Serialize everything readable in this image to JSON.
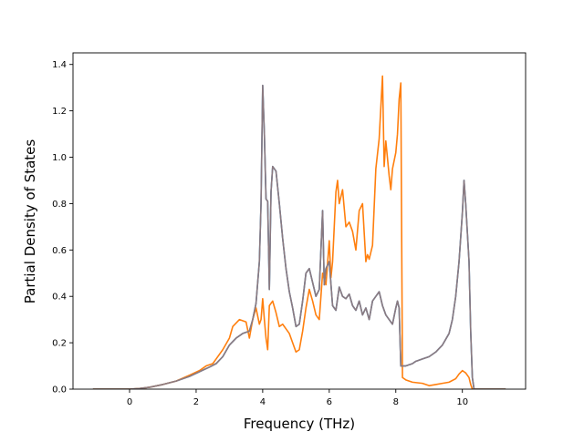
{
  "chart_data": {
    "type": "line",
    "title": "",
    "xlabel": "Frequency (THz)",
    "ylabel": "Partial Density of States",
    "xlim": [
      -1.7,
      11.9
    ],
    "ylim": [
      0.0,
      1.45
    ],
    "xticks": [
      0,
      2,
      4,
      6,
      8,
      10
    ],
    "yticks": [
      0.0,
      0.2,
      0.4,
      0.6,
      0.8,
      1.0,
      1.2,
      1.4
    ],
    "xtick_labels": [
      "0",
      "2",
      "4",
      "6",
      "8",
      "10"
    ],
    "ytick_labels": [
      "0.0",
      "0.2",
      "0.4",
      "0.6",
      "0.8",
      "1.0",
      "1.2",
      "1.4"
    ],
    "grid": false,
    "legend": "none",
    "series": [
      {
        "color": "#1f77b4",
        "points": [
          [
            -1.1,
            0
          ],
          [
            0,
            0
          ],
          [
            0.3,
            0.003
          ],
          [
            0.6,
            0.008
          ],
          [
            1.0,
            0.02
          ],
          [
            1.4,
            0.035
          ],
          [
            1.8,
            0.055
          ],
          [
            2.1,
            0.075
          ],
          [
            2.4,
            0.095
          ],
          [
            2.6,
            0.11
          ],
          [
            2.8,
            0.14
          ],
          [
            3.0,
            0.19
          ],
          [
            3.2,
            0.22
          ],
          [
            3.4,
            0.24
          ],
          [
            3.6,
            0.25
          ],
          [
            3.7,
            0.3
          ],
          [
            3.8,
            0.37
          ],
          [
            3.9,
            0.55
          ],
          [
            3.95,
            0.8
          ],
          [
            4.0,
            1.31
          ],
          [
            4.05,
            1.1
          ],
          [
            4.1,
            0.82
          ],
          [
            4.15,
            0.81
          ],
          [
            4.2,
            0.43
          ],
          [
            4.25,
            0.85
          ],
          [
            4.3,
            0.96
          ],
          [
            4.4,
            0.94
          ],
          [
            4.5,
            0.8
          ],
          [
            4.6,
            0.65
          ],
          [
            4.7,
            0.52
          ],
          [
            4.8,
            0.42
          ],
          [
            4.9,
            0.35
          ],
          [
            5.0,
            0.27
          ],
          [
            5.1,
            0.28
          ],
          [
            5.2,
            0.38
          ],
          [
            5.3,
            0.5
          ],
          [
            5.4,
            0.52
          ],
          [
            5.5,
            0.46
          ],
          [
            5.6,
            0.4
          ],
          [
            5.7,
            0.43
          ],
          [
            5.8,
            0.77
          ],
          [
            5.85,
            0.45
          ],
          [
            5.9,
            0.52
          ],
          [
            6.0,
            0.55
          ],
          [
            6.1,
            0.36
          ],
          [
            6.2,
            0.34
          ],
          [
            6.3,
            0.44
          ],
          [
            6.4,
            0.4
          ],
          [
            6.5,
            0.39
          ],
          [
            6.6,
            0.41
          ],
          [
            6.7,
            0.36
          ],
          [
            6.8,
            0.34
          ],
          [
            6.9,
            0.38
          ],
          [
            7.0,
            0.32
          ],
          [
            7.1,
            0.35
          ],
          [
            7.2,
            0.3
          ],
          [
            7.3,
            0.38
          ],
          [
            7.4,
            0.4
          ],
          [
            7.5,
            0.42
          ],
          [
            7.6,
            0.36
          ],
          [
            7.7,
            0.32
          ],
          [
            7.8,
            0.3
          ],
          [
            7.9,
            0.28
          ],
          [
            8.0,
            0.35
          ],
          [
            8.05,
            0.38
          ],
          [
            8.1,
            0.35
          ],
          [
            8.15,
            0.1
          ],
          [
            8.3,
            0.1
          ],
          [
            8.5,
            0.11
          ],
          [
            8.6,
            0.12
          ],
          [
            8.8,
            0.13
          ],
          [
            9.0,
            0.14
          ],
          [
            9.2,
            0.16
          ],
          [
            9.4,
            0.19
          ],
          [
            9.6,
            0.24
          ],
          [
            9.7,
            0.3
          ],
          [
            9.8,
            0.4
          ],
          [
            9.9,
            0.55
          ],
          [
            10.0,
            0.76
          ],
          [
            10.05,
            0.9
          ],
          [
            10.1,
            0.8
          ],
          [
            10.2,
            0.55
          ],
          [
            10.25,
            0.25
          ],
          [
            10.3,
            0.05
          ],
          [
            10.35,
            0
          ],
          [
            11.3,
            0
          ]
        ]
      },
      {
        "color": "#ff7f0e",
        "points": [
          [
            -1.1,
            0
          ],
          [
            0,
            0
          ],
          [
            0.3,
            0.003
          ],
          [
            0.6,
            0.008
          ],
          [
            1.0,
            0.02
          ],
          [
            1.4,
            0.035
          ],
          [
            1.8,
            0.06
          ],
          [
            2.1,
            0.08
          ],
          [
            2.3,
            0.1
          ],
          [
            2.5,
            0.11
          ],
          [
            2.6,
            0.13
          ],
          [
            2.8,
            0.17
          ],
          [
            3.0,
            0.22
          ],
          [
            3.1,
            0.27
          ],
          [
            3.3,
            0.3
          ],
          [
            3.5,
            0.29
          ],
          [
            3.6,
            0.22
          ],
          [
            3.7,
            0.3
          ],
          [
            3.8,
            0.35
          ],
          [
            3.9,
            0.28
          ],
          [
            3.95,
            0.3
          ],
          [
            4.0,
            0.39
          ],
          [
            4.05,
            0.3
          ],
          [
            4.1,
            0.22
          ],
          [
            4.15,
            0.17
          ],
          [
            4.2,
            0.36
          ],
          [
            4.3,
            0.38
          ],
          [
            4.4,
            0.33
          ],
          [
            4.5,
            0.27
          ],
          [
            4.6,
            0.28
          ],
          [
            4.7,
            0.26
          ],
          [
            4.8,
            0.24
          ],
          [
            4.9,
            0.2
          ],
          [
            5.0,
            0.16
          ],
          [
            5.1,
            0.17
          ],
          [
            5.2,
            0.25
          ],
          [
            5.3,
            0.35
          ],
          [
            5.4,
            0.43
          ],
          [
            5.5,
            0.38
          ],
          [
            5.6,
            0.32
          ],
          [
            5.7,
            0.3
          ],
          [
            5.8,
            0.5
          ],
          [
            5.9,
            0.45
          ],
          [
            6.0,
            0.64
          ],
          [
            6.05,
            0.48
          ],
          [
            6.1,
            0.55
          ],
          [
            6.2,
            0.85
          ],
          [
            6.25,
            0.9
          ],
          [
            6.3,
            0.8
          ],
          [
            6.4,
            0.86
          ],
          [
            6.5,
            0.7
          ],
          [
            6.6,
            0.72
          ],
          [
            6.7,
            0.68
          ],
          [
            6.8,
            0.6
          ],
          [
            6.9,
            0.77
          ],
          [
            7.0,
            0.8
          ],
          [
            7.1,
            0.55
          ],
          [
            7.15,
            0.58
          ],
          [
            7.2,
            0.56
          ],
          [
            7.3,
            0.62
          ],
          [
            7.4,
            0.95
          ],
          [
            7.5,
            1.08
          ],
          [
            7.6,
            1.35
          ],
          [
            7.65,
            0.96
          ],
          [
            7.7,
            1.07
          ],
          [
            7.8,
            0.92
          ],
          [
            7.85,
            0.86
          ],
          [
            7.9,
            0.95
          ],
          [
            8.0,
            1.02
          ],
          [
            8.05,
            1.1
          ],
          [
            8.1,
            1.25
          ],
          [
            8.15,
            1.32
          ],
          [
            8.2,
            0.05
          ],
          [
            8.3,
            0.04
          ],
          [
            8.5,
            0.03
          ],
          [
            8.8,
            0.025
          ],
          [
            9.0,
            0.015
          ],
          [
            9.2,
            0.02
          ],
          [
            9.4,
            0.025
          ],
          [
            9.6,
            0.03
          ],
          [
            9.8,
            0.045
          ],
          [
            9.9,
            0.065
          ],
          [
            10.0,
            0.08
          ],
          [
            10.1,
            0.07
          ],
          [
            10.2,
            0.05
          ],
          [
            10.25,
            0.02
          ],
          [
            10.3,
            0
          ],
          [
            11.3,
            0
          ]
        ]
      },
      {
        "color": "#8c7a80",
        "points": [
          [
            -1.1,
            0
          ],
          [
            0,
            0
          ],
          [
            0.3,
            0.003
          ],
          [
            0.6,
            0.008
          ],
          [
            1.0,
            0.02
          ],
          [
            1.4,
            0.035
          ],
          [
            1.8,
            0.055
          ],
          [
            2.1,
            0.075
          ],
          [
            2.4,
            0.095
          ],
          [
            2.6,
            0.11
          ],
          [
            2.8,
            0.14
          ],
          [
            3.0,
            0.19
          ],
          [
            3.2,
            0.22
          ],
          [
            3.4,
            0.24
          ],
          [
            3.6,
            0.25
          ],
          [
            3.7,
            0.3
          ],
          [
            3.8,
            0.37
          ],
          [
            3.9,
            0.55
          ],
          [
            3.95,
            0.8
          ],
          [
            4.0,
            1.31
          ],
          [
            4.05,
            1.1
          ],
          [
            4.1,
            0.82
          ],
          [
            4.15,
            0.81
          ],
          [
            4.2,
            0.43
          ],
          [
            4.25,
            0.85
          ],
          [
            4.3,
            0.96
          ],
          [
            4.4,
            0.94
          ],
          [
            4.5,
            0.8
          ],
          [
            4.6,
            0.65
          ],
          [
            4.7,
            0.52
          ],
          [
            4.8,
            0.42
          ],
          [
            4.9,
            0.35
          ],
          [
            5.0,
            0.27
          ],
          [
            5.1,
            0.28
          ],
          [
            5.2,
            0.38
          ],
          [
            5.3,
            0.5
          ],
          [
            5.4,
            0.52
          ],
          [
            5.5,
            0.46
          ],
          [
            5.6,
            0.4
          ],
          [
            5.7,
            0.43
          ],
          [
            5.8,
            0.77
          ],
          [
            5.85,
            0.45
          ],
          [
            5.9,
            0.52
          ],
          [
            6.0,
            0.55
          ],
          [
            6.1,
            0.36
          ],
          [
            6.2,
            0.34
          ],
          [
            6.3,
            0.44
          ],
          [
            6.4,
            0.4
          ],
          [
            6.5,
            0.39
          ],
          [
            6.6,
            0.41
          ],
          [
            6.7,
            0.36
          ],
          [
            6.8,
            0.34
          ],
          [
            6.9,
            0.38
          ],
          [
            7.0,
            0.32
          ],
          [
            7.1,
            0.35
          ],
          [
            7.2,
            0.3
          ],
          [
            7.3,
            0.38
          ],
          [
            7.4,
            0.4
          ],
          [
            7.5,
            0.42
          ],
          [
            7.6,
            0.36
          ],
          [
            7.7,
            0.32
          ],
          [
            7.8,
            0.3
          ],
          [
            7.9,
            0.28
          ],
          [
            8.0,
            0.35
          ],
          [
            8.05,
            0.38
          ],
          [
            8.1,
            0.35
          ],
          [
            8.15,
            0.1
          ],
          [
            8.3,
            0.1
          ],
          [
            8.5,
            0.11
          ],
          [
            8.6,
            0.12
          ],
          [
            8.8,
            0.13
          ],
          [
            9.0,
            0.14
          ],
          [
            9.2,
            0.16
          ],
          [
            9.4,
            0.19
          ],
          [
            9.6,
            0.24
          ],
          [
            9.7,
            0.3
          ],
          [
            9.8,
            0.4
          ],
          [
            9.9,
            0.55
          ],
          [
            10.0,
            0.76
          ],
          [
            10.05,
            0.9
          ],
          [
            10.1,
            0.8
          ],
          [
            10.2,
            0.55
          ],
          [
            10.25,
            0.25
          ],
          [
            10.3,
            0.05
          ],
          [
            10.35,
            0
          ],
          [
            11.3,
            0
          ]
        ]
      }
    ]
  }
}
